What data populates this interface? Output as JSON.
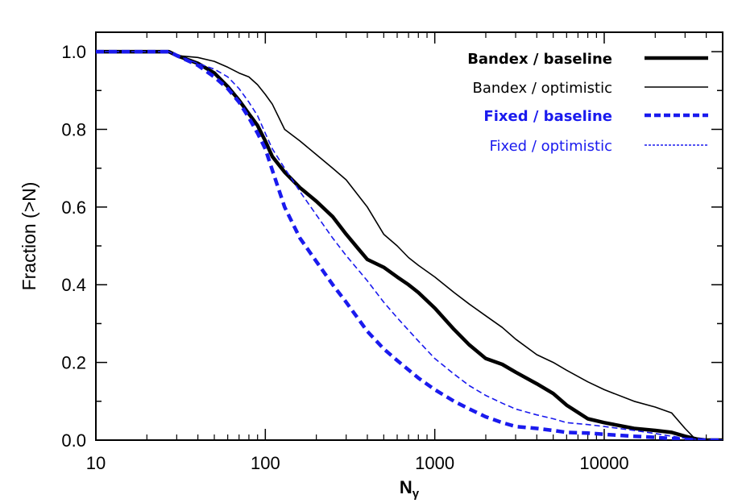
{
  "chart_data": {
    "type": "line",
    "title": "",
    "xlabel": "N",
    "xlabel_subscript": "γ",
    "ylabel": "Fraction (>N)",
    "xscale": "log",
    "xlim": [
      10,
      50000
    ],
    "ylim": [
      0.0,
      1.05
    ],
    "grid": false,
    "legend_position": "top-right",
    "x_tick_labels": [
      "10",
      "100",
      "1000",
      "10000"
    ],
    "y_tick_labels": [
      "0.0",
      "0.2",
      "0.4",
      "0.6",
      "0.8",
      "1.0"
    ],
    "series": [
      {
        "name": "Bandex / baseline",
        "color": "#000000",
        "style": "solid-thick",
        "x": [
          10,
          27,
          30,
          40,
          50,
          60,
          70,
          80,
          90,
          100,
          110,
          130,
          160,
          200,
          250,
          300,
          350,
          400,
          500,
          600,
          700,
          800,
          1000,
          1300,
          1600,
          2000,
          2500,
          3000,
          4000,
          5000,
          6000,
          8000,
          10000,
          15000,
          20000,
          25000,
          30000,
          35000,
          40000,
          45000,
          50000
        ],
        "y": [
          1.0,
          1.0,
          0.99,
          0.97,
          0.945,
          0.91,
          0.875,
          0.84,
          0.81,
          0.77,
          0.73,
          0.69,
          0.65,
          0.615,
          0.575,
          0.53,
          0.495,
          0.465,
          0.445,
          0.42,
          0.4,
          0.38,
          0.34,
          0.285,
          0.245,
          0.21,
          0.195,
          0.175,
          0.145,
          0.12,
          0.09,
          0.055,
          0.045,
          0.03,
          0.025,
          0.02,
          0.01,
          0.003,
          0.0,
          0.0,
          0.0
        ]
      },
      {
        "name": "Bandex / optimistic",
        "color": "#000000",
        "style": "solid-thin",
        "x": [
          10,
          27,
          30,
          40,
          50,
          60,
          70,
          80,
          90,
          100,
          110,
          130,
          160,
          200,
          250,
          300,
          400,
          500,
          600,
          700,
          800,
          1000,
          1300,
          1600,
          2000,
          2500,
          3000,
          4000,
          5000,
          6000,
          8000,
          10000,
          15000,
          20000,
          25000,
          30000,
          35000,
          40000,
          45000,
          50000
        ],
        "y": [
          1.0,
          1.0,
          0.99,
          0.985,
          0.975,
          0.96,
          0.945,
          0.935,
          0.915,
          0.89,
          0.865,
          0.8,
          0.77,
          0.735,
          0.7,
          0.67,
          0.6,
          0.53,
          0.5,
          0.47,
          0.45,
          0.42,
          0.38,
          0.35,
          0.32,
          0.29,
          0.26,
          0.22,
          0.2,
          0.18,
          0.15,
          0.13,
          0.1,
          0.085,
          0.07,
          0.03,
          0.0,
          0.0,
          0.0,
          0.0
        ]
      },
      {
        "name": "Fixed / baseline",
        "color": "#1a1aee",
        "style": "dashed-thick",
        "x": [
          10,
          27,
          30,
          40,
          50,
          60,
          70,
          80,
          90,
          100,
          110,
          130,
          160,
          200,
          250,
          300,
          400,
          500,
          600,
          800,
          1000,
          1300,
          1600,
          2000,
          2500,
          3000,
          4000,
          5000,
          6000,
          8000,
          10000,
          15000,
          20000,
          25000,
          30000,
          35000,
          40000,
          45000,
          50000
        ],
        "y": [
          1.0,
          1.0,
          0.99,
          0.965,
          0.935,
          0.905,
          0.87,
          0.83,
          0.79,
          0.75,
          0.695,
          0.6,
          0.52,
          0.46,
          0.4,
          0.355,
          0.28,
          0.235,
          0.205,
          0.16,
          0.13,
          0.1,
          0.08,
          0.06,
          0.045,
          0.035,
          0.03,
          0.025,
          0.02,
          0.018,
          0.015,
          0.01,
          0.007,
          0.004,
          0.002,
          0.001,
          0.0,
          0.0,
          0.0
        ]
      },
      {
        "name": "Fixed / optimistic",
        "color": "#1a1aee",
        "style": "dashed-thin",
        "x": [
          10,
          27,
          30,
          40,
          50,
          60,
          70,
          80,
          90,
          100,
          110,
          130,
          160,
          200,
          250,
          300,
          400,
          500,
          600,
          800,
          1000,
          1300,
          1600,
          2000,
          2500,
          3000,
          4000,
          5000,
          6000,
          8000,
          10000,
          15000,
          20000,
          25000,
          30000,
          35000,
          40000,
          45000,
          50000
        ],
        "y": [
          1.0,
          1.0,
          0.99,
          0.97,
          0.955,
          0.935,
          0.905,
          0.87,
          0.835,
          0.79,
          0.75,
          0.7,
          0.64,
          0.58,
          0.52,
          0.475,
          0.41,
          0.355,
          0.315,
          0.255,
          0.21,
          0.17,
          0.14,
          0.115,
          0.095,
          0.08,
          0.065,
          0.055,
          0.045,
          0.04,
          0.035,
          0.025,
          0.017,
          0.01,
          0.005,
          0.002,
          0.0,
          0.0,
          0.0
        ]
      }
    ]
  }
}
